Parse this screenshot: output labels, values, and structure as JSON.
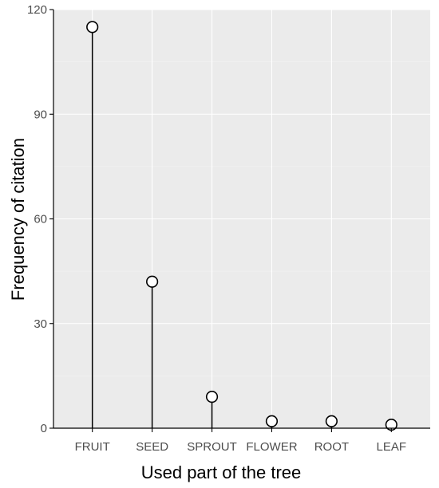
{
  "chart_data": {
    "type": "lollipop",
    "title": "",
    "xlabel": "Used part of the tree",
    "ylabel": "Frequency of citation",
    "categories": [
      "FRUIT",
      "SEED",
      "SPROUT",
      "FLOWER",
      "ROOT",
      "LEAF"
    ],
    "values": [
      115,
      42,
      9,
      2,
      2,
      1
    ],
    "ylim": [
      0,
      120
    ],
    "yticks": [
      0,
      30,
      60,
      90,
      120
    ],
    "grid": true,
    "legend": "none"
  },
  "colors": {
    "panel_background": "#ebebeb",
    "grid_major": "#ffffff",
    "grid_minor": "#f5f5f5",
    "stem": "#000000",
    "marker_fill": "#ffffff",
    "marker_stroke": "#000000",
    "axis_line": "#000000",
    "tick_text": "#4d4d4d"
  }
}
